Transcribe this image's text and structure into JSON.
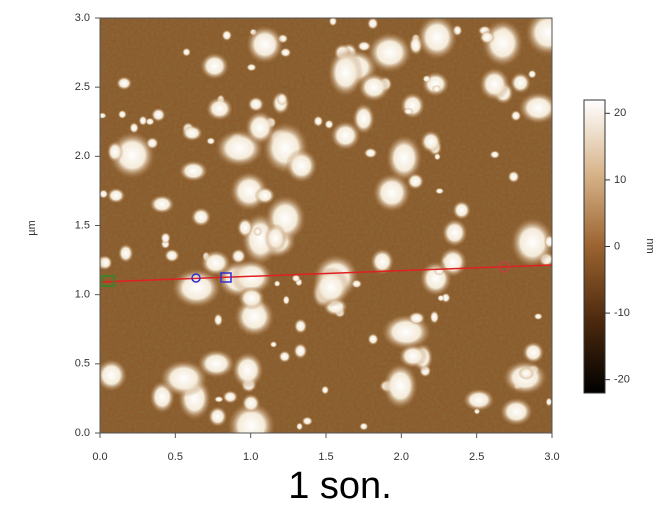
{
  "chart_data": {
    "type": "afm-image",
    "caption": "1 son.",
    "ylabel": "µm",
    "xlim": [
      0,
      3
    ],
    "ylim": [
      0,
      3
    ],
    "xticks": [
      {
        "value": 0,
        "label": "0.0"
      },
      0.5,
      {
        "value": 1,
        "label": "1.0"
      },
      1.5,
      {
        "value": 2,
        "label": "2.0"
      },
      2.5,
      {
        "value": 3,
        "label": "3.0"
      }
    ],
    "yticks": [
      {
        "value": 0,
        "label": "0.0"
      },
      0.5,
      {
        "value": 1,
        "label": "1.0"
      },
      1.5,
      {
        "value": 2,
        "label": "2.0"
      },
      2.5,
      {
        "value": 3,
        "label": "3.0"
      }
    ],
    "colorbar": {
      "label": "nm",
      "lim": [
        -22,
        22
      ],
      "ticks": [
        20,
        10,
        0,
        -10,
        -20
      ]
    }
  }
}
